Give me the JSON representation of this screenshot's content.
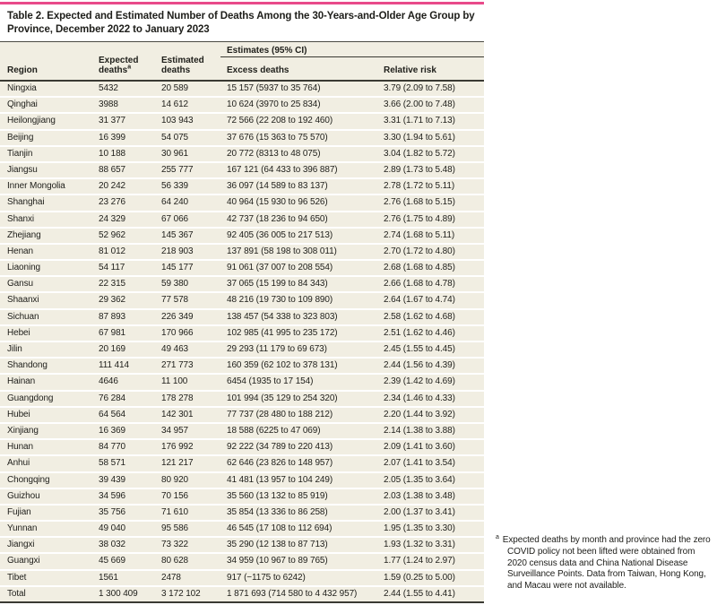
{
  "title": "Table 2. Expected and Estimated Number of Deaths Among the 30-Years-and-Older Age Group by Province, December 2022 to January 2023",
  "colors": {
    "accent_pink": "#e84a8a",
    "row_beige": "#f1eee2",
    "rule_dark": "#3a3a33"
  },
  "table": {
    "columns": {
      "region": "Region",
      "expected": "Expected deaths",
      "expected_sup": "a",
      "estimated": "Estimated deaths",
      "spanner": "Estimates (95% CI)",
      "excess": "Excess deaths",
      "relative": "Relative risk"
    },
    "rows": [
      {
        "region": "Ningxia",
        "expected": "5432",
        "estimated": "20 589",
        "excess": "15 157 (5937 to 35 764)",
        "relative": "3.79 (2.09 to 7.58)"
      },
      {
        "region": "Qinghai",
        "expected": "3988",
        "estimated": "14 612",
        "excess": "10 624 (3970 to 25 834)",
        "relative": "3.66 (2.00 to 7.48)"
      },
      {
        "region": "Heilongjiang",
        "expected": "31 377",
        "estimated": "103 943",
        "excess": "72 566 (22 208 to 192 460)",
        "relative": "3.31 (1.71 to 7.13)"
      },
      {
        "region": "Beijing",
        "expected": "16 399",
        "estimated": "54 075",
        "excess": "37 676 (15 363 to 75 570)",
        "relative": "3.30 (1.94 to 5.61)"
      },
      {
        "region": "Tianjin",
        "expected": "10 188",
        "estimated": "30 961",
        "excess": "20 772 (8313 to 48 075)",
        "relative": "3.04 (1.82 to 5.72)"
      },
      {
        "region": "Jiangsu",
        "expected": "88 657",
        "estimated": "255 777",
        "excess": "167 121 (64 433 to 396 887)",
        "relative": "2.89 (1.73 to 5.48)"
      },
      {
        "region": "Inner Mongolia",
        "expected": "20 242",
        "estimated": "56 339",
        "excess": "36 097 (14 589 to 83 137)",
        "relative": "2.78 (1.72 to 5.11)"
      },
      {
        "region": "Shanghai",
        "expected": "23 276",
        "estimated": "64 240",
        "excess": "40 964 (15 930 to 96 526)",
        "relative": "2.76 (1.68 to 5.15)"
      },
      {
        "region": "Shanxi",
        "expected": "24 329",
        "estimated": "67 066",
        "excess": "42 737 (18 236 to 94 650)",
        "relative": "2.76 (1.75 to 4.89)"
      },
      {
        "region": "Zhejiang",
        "expected": "52 962",
        "estimated": "145 367",
        "excess": "92 405 (36 005 to 217 513)",
        "relative": "2.74 (1.68 to 5.11)"
      },
      {
        "region": "Henan",
        "expected": "81 012",
        "estimated": "218 903",
        "excess": "137 891 (58 198 to 308 011)",
        "relative": "2.70 (1.72 to 4.80)"
      },
      {
        "region": "Liaoning",
        "expected": "54 117",
        "estimated": "145 177",
        "excess": "91 061 (37 007 to 208 554)",
        "relative": "2.68 (1.68 to 4.85)"
      },
      {
        "region": "Gansu",
        "expected": "22 315",
        "estimated": "59 380",
        "excess": "37 065 (15 199 to 84 343)",
        "relative": "2.66 (1.68 to 4.78)"
      },
      {
        "region": "Shaanxi",
        "expected": "29 362",
        "estimated": "77 578",
        "excess": "48 216 (19 730 to 109 890)",
        "relative": "2.64 (1.67 to 4.74)"
      },
      {
        "region": "Sichuan",
        "expected": "87 893",
        "estimated": "226 349",
        "excess": "138 457 (54 338 to 323 803)",
        "relative": "2.58 (1.62 to 4.68)"
      },
      {
        "region": "Hebei",
        "expected": "67 981",
        "estimated": "170 966",
        "excess": "102 985 (41 995 to 235 172)",
        "relative": "2.51 (1.62 to 4.46)"
      },
      {
        "region": "Jilin",
        "expected": "20 169",
        "estimated": "49 463",
        "excess": "29 293 (11 179 to 69 673)",
        "relative": "2.45 (1.55 to 4.45)"
      },
      {
        "region": "Shandong",
        "expected": "111 414",
        "estimated": "271 773",
        "excess": "160 359 (62 102 to 378 131)",
        "relative": "2.44 (1.56 to 4.39)"
      },
      {
        "region": "Hainan",
        "expected": "4646",
        "estimated": "11 100",
        "excess": "6454 (1935 to 17 154)",
        "relative": "2.39 (1.42 to 4.69)"
      },
      {
        "region": "Guangdong",
        "expected": "76 284",
        "estimated": "178 278",
        "excess": "101 994 (35 129 to 254 320)",
        "relative": "2.34 (1.46 to 4.33)"
      },
      {
        "region": "Hubei",
        "expected": "64 564",
        "estimated": "142 301",
        "excess": "77 737 (28 480 to 188 212)",
        "relative": "2.20 (1.44 to 3.92)"
      },
      {
        "region": "Xinjiang",
        "expected": "16 369",
        "estimated": "34 957",
        "excess": "18 588 (6225 to 47 069)",
        "relative": "2.14 (1.38 to 3.88)"
      },
      {
        "region": "Hunan",
        "expected": "84 770",
        "estimated": "176 992",
        "excess": "92 222 (34 789 to 220 413)",
        "relative": "2.09 (1.41 to 3.60)"
      },
      {
        "region": "Anhui",
        "expected": "58 571",
        "estimated": "121 217",
        "excess": "62 646 (23 826 to 148 957)",
        "relative": "2.07 (1.41 to 3.54)"
      },
      {
        "region": "Chongqing",
        "expected": "39 439",
        "estimated": "80 920",
        "excess": "41 481 (13 957 to 104 249)",
        "relative": "2.05 (1.35 to 3.64)"
      },
      {
        "region": "Guizhou",
        "expected": "34 596",
        "estimated": "70 156",
        "excess": "35 560 (13 132 to 85 919)",
        "relative": "2.03 (1.38 to 3.48)"
      },
      {
        "region": "Fujian",
        "expected": "35 756",
        "estimated": "71 610",
        "excess": "35 854 (13 336 to 86 258)",
        "relative": "2.00 (1.37 to 3.41)"
      },
      {
        "region": "Yunnan",
        "expected": "49 040",
        "estimated": "95 586",
        "excess": "46 545 (17 108 to 112 694)",
        "relative": "1.95 (1.35 to 3.30)"
      },
      {
        "region": "Jiangxi",
        "expected": "38 032",
        "estimated": "73 322",
        "excess": "35 290 (12 138 to 87 713)",
        "relative": "1.93 (1.32 to 3.31)"
      },
      {
        "region": "Guangxi",
        "expected": "45 669",
        "estimated": "80 628",
        "excess": "34 959 (10 967 to 89 765)",
        "relative": "1.77 (1.24 to 2.97)"
      },
      {
        "region": "Tibet",
        "expected": "1561",
        "estimated": "2478",
        "excess": "917 (−1175 to 6242)",
        "relative": "1.59 (0.25 to 5.00)"
      }
    ],
    "total": {
      "region": "Total",
      "expected": "1 300 409",
      "estimated": "3 172 102",
      "excess": "1 871 693 (714 580 to 4 432 957)",
      "relative": "2.44 (1.55 to 4.41)"
    }
  },
  "footnote": {
    "marker": "a",
    "text": "Expected deaths by month and province had the zero COVID policy not been lifted were obtained from 2020 census data and China National Disease Surveillance Points. Data from Taiwan, Hong Kong, and Macau were not available."
  }
}
